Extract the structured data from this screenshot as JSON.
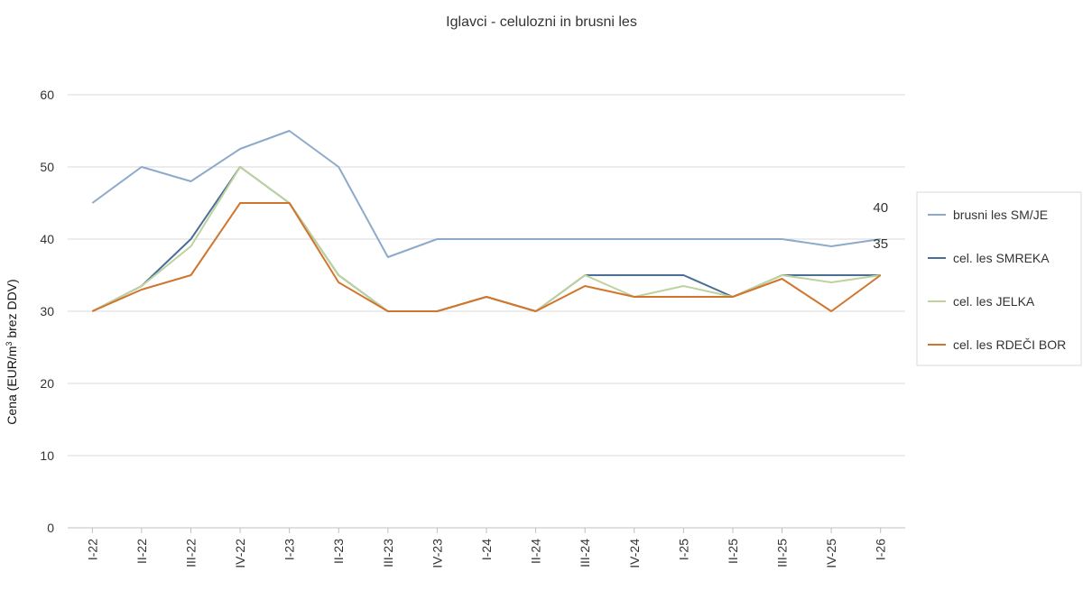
{
  "chart_data": {
    "type": "line",
    "title": "Iglavci - celulozni in brusni les",
    "ylabel_prefix": "Cena (EUR/m",
    "ylabel_sup": "3",
    "ylabel_suffix": " brez DDV)",
    "xlabel": "",
    "ylim": [
      0,
      60
    ],
    "yticks": [
      "0",
      "10",
      "20",
      "30",
      "40",
      "50",
      "60"
    ],
    "grid": true,
    "legend_position": "right",
    "categories": [
      "I-22",
      "II-22",
      "III-22",
      "IV-22",
      "I-23",
      "II-23",
      "III-23",
      "IV-23",
      "I-24",
      "II-24",
      "III-24",
      "IV-24",
      "I-25",
      "II-25",
      "III-25",
      "IV-25",
      "I-26"
    ],
    "series": [
      {
        "name": "brusni les SM/JE",
        "color": "#8eaacb",
        "values": [
          45,
          50,
          48,
          52.5,
          55,
          50,
          37.5,
          40,
          40,
          40,
          40,
          40,
          40,
          40,
          40,
          39,
          40
        ]
      },
      {
        "name": "cel. les SMREKA",
        "color": "#4a6f96",
        "values": [
          30,
          33.5,
          40,
          50,
          45,
          35,
          30,
          30,
          32,
          30,
          35,
          35,
          35,
          32,
          35,
          35,
          35
        ]
      },
      {
        "name": "cel. les JELKA",
        "color": "#bdd29d",
        "values": [
          30,
          33.5,
          39,
          50,
          45,
          35,
          30,
          30,
          32,
          30,
          35,
          32,
          33.5,
          32,
          35,
          34,
          35
        ]
      },
      {
        "name": "cel. les RDEČI BOR",
        "color": "#d2752c",
        "values": [
          30,
          33,
          35,
          45,
          45,
          34,
          30,
          30,
          32,
          30,
          33.5,
          32,
          32,
          32,
          34.5,
          30,
          35
        ]
      }
    ],
    "data_labels": [
      {
        "text": "40",
        "category": "I-26",
        "value": 40,
        "series": "brusni les SM/JE"
      },
      {
        "text": "35",
        "category": "I-26",
        "value": 35,
        "series": "cel. les RDEČI BOR"
      }
    ]
  }
}
